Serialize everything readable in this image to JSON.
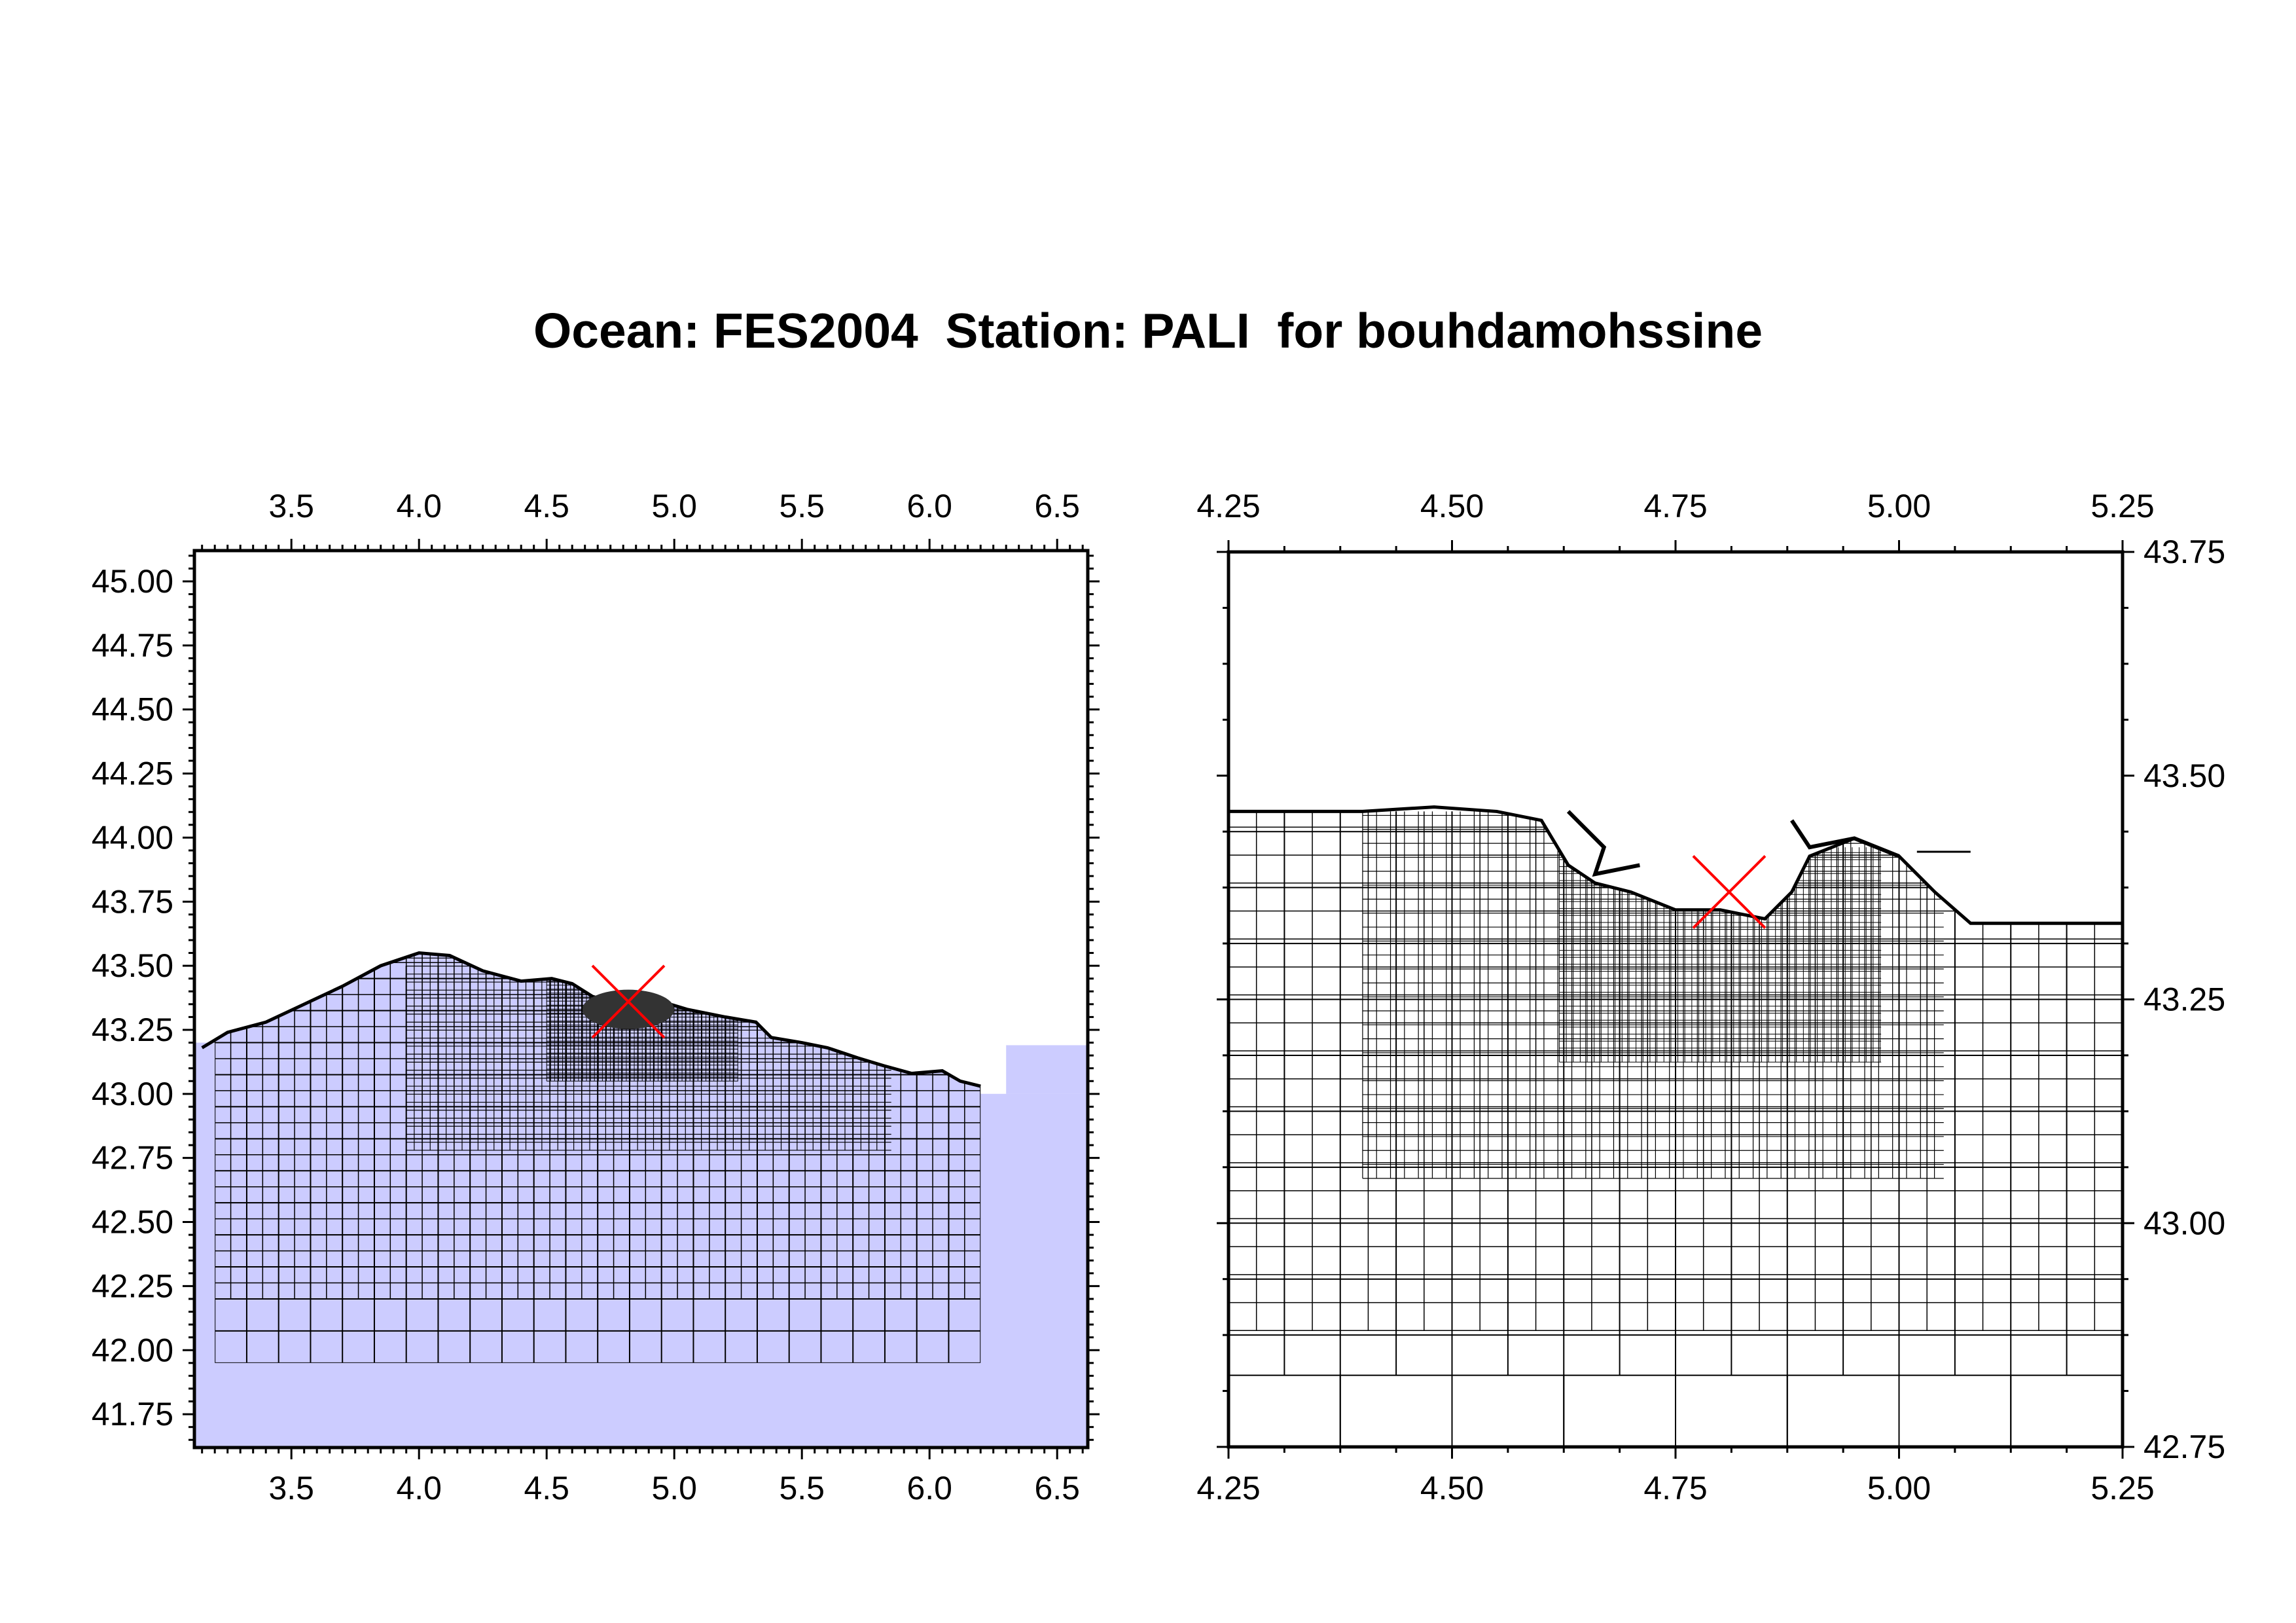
{
  "title": "Ocean: FES2004  Station: PALI  for bouhdamohssine",
  "colors": {
    "land_fill": "#ccccff",
    "grid_line": "#000000",
    "station_marker": "#ff0000",
    "frame": "#000000",
    "dense_grid": "#333333"
  },
  "left_map": {
    "lon_range": [
      3.12,
      6.62
    ],
    "lat_range": [
      41.62,
      45.12
    ],
    "lon_ticks": [
      "3.5",
      "4.0",
      "4.5",
      "5.0",
      "5.5",
      "6.0",
      "6.5"
    ],
    "lat_ticks": [
      "41.75",
      "42.00",
      "42.25",
      "42.50",
      "42.75",
      "43.00",
      "43.25",
      "43.50",
      "43.75",
      "44.00",
      "44.25",
      "44.50",
      "44.75",
      "45.00"
    ],
    "station": {
      "lon": 4.82,
      "lat": 43.36
    }
  },
  "right_map": {
    "lon_range": [
      4.25,
      5.25
    ],
    "lat_range": [
      42.75,
      43.75
    ],
    "lon_ticks": [
      "4.25",
      "4.50",
      "4.75",
      "5.00",
      "5.25"
    ],
    "lat_ticks": [
      "42.75",
      "43.00",
      "43.25",
      "43.50",
      "43.75"
    ],
    "station": {
      "lon": 4.81,
      "lat": 43.37
    }
  }
}
